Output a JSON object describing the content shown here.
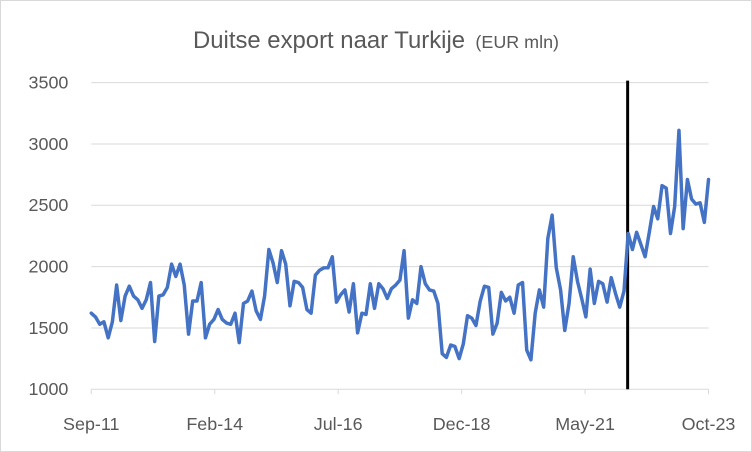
{
  "chart_data": {
    "type": "line",
    "title": "Duitse export naar Turkije",
    "subtitle": "(EUR mln)",
    "xlabel": "",
    "ylabel": "",
    "ylim": [
      1000,
      3500
    ],
    "yticks": [
      1000,
      1500,
      2000,
      2500,
      3000,
      3500
    ],
    "xtick_labels": [
      "Sep-11",
      "Feb-14",
      "Jul-16",
      "Dec-18",
      "May-21",
      "Oct-23"
    ],
    "x_start": "Sep-11",
    "x_end": "Oct-23",
    "grid": "horizontal",
    "legend": "none",
    "series_color": "#4472c4",
    "marker_line": {
      "date": "Mar-22",
      "color": "#000000"
    },
    "series": [
      {
        "values": [
          1620,
          1590,
          1530,
          1550,
          1420,
          1550,
          1850,
          1560,
          1760,
          1840,
          1760,
          1730,
          1660,
          1730,
          1870,
          1390,
          1760,
          1770,
          1830,
          2020,
          1920,
          2020,
          1850,
          1450,
          1720,
          1720,
          1870,
          1420,
          1530,
          1570,
          1650,
          1570,
          1540,
          1530,
          1620,
          1380,
          1700,
          1720,
          1800,
          1640,
          1570,
          1760,
          2140,
          2030,
          1870,
          2130,
          2020,
          1680,
          1880,
          1870,
          1830,
          1650,
          1620,
          1930,
          1970,
          1990,
          1990,
          2080,
          1710,
          1770,
          1810,
          1630,
          1860,
          1460,
          1620,
          1610,
          1860,
          1660,
          1860,
          1820,
          1740,
          1820,
          1850,
          1890,
          2130,
          1580,
          1730,
          1700,
          2000,
          1860,
          1810,
          1800,
          1700,
          1290,
          1260,
          1360,
          1350,
          1250,
          1370,
          1600,
          1580,
          1520,
          1720,
          1840,
          1830,
          1450,
          1540,
          1790,
          1720,
          1750,
          1620,
          1850,
          1870,
          1320,
          1240,
          1620,
          1810,
          1670,
          2230,
          2420,
          1990,
          1810,
          1480,
          1700,
          2080,
          1880,
          1740,
          1590,
          1980,
          1700,
          1880,
          1860,
          1710,
          1910,
          1780,
          1670,
          1800,
          2270,
          2140,
          2280,
          2180,
          2080,
          2280,
          2490,
          2390,
          2660,
          2640,
          2270,
          2490,
          3110,
          2310,
          2710,
          2550,
          2510,
          2520,
          2360,
          2710
        ]
      }
    ]
  }
}
